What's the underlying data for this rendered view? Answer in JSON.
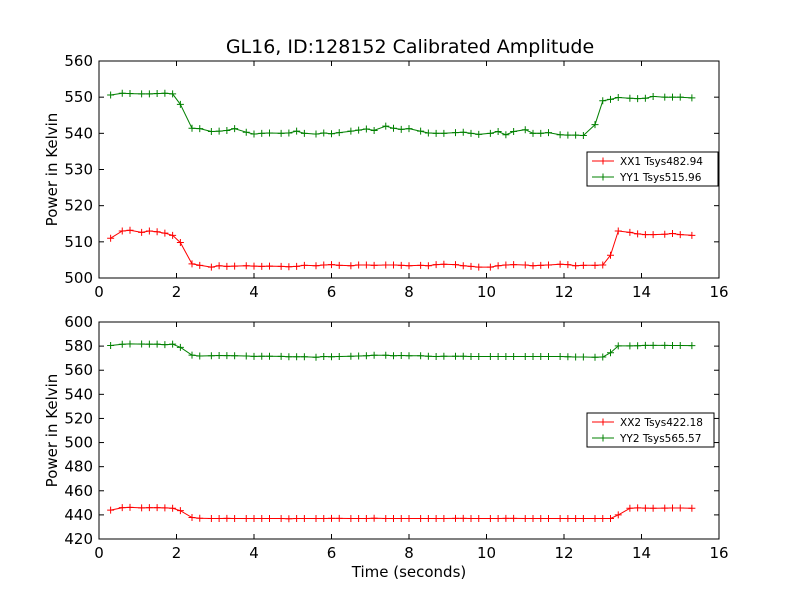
{
  "title": "GL16, ID:128152 Calibrated Amplitude",
  "colors": {
    "xx": "#ff0000",
    "yy": "#008000"
  },
  "chart_data": [
    {
      "type": "line",
      "ylabel": "Power in Kelvin",
      "xlabel": "",
      "xlim": [
        0,
        16
      ],
      "ylim": [
        500,
        560
      ],
      "xticks": [
        0,
        2,
        4,
        6,
        8,
        10,
        12,
        14,
        16
      ],
      "yticks": [
        500,
        510,
        520,
        530,
        540,
        550,
        560
      ],
      "legend": "center-right",
      "series": [
        {
          "name": "XX1 Tsys482.94",
          "color": "#ff0000",
          "x": [
            0.3,
            0.6,
            0.8,
            1.1,
            1.3,
            1.5,
            1.7,
            1.9,
            2.1,
            2.4,
            2.6,
            2.9,
            3.1,
            3.3,
            3.5,
            3.8,
            4.0,
            4.2,
            4.4,
            4.7,
            4.9,
            5.1,
            5.3,
            5.6,
            5.8,
            6.0,
            6.2,
            6.5,
            6.7,
            6.9,
            7.1,
            7.4,
            7.6,
            7.8,
            8.0,
            8.3,
            8.5,
            8.7,
            8.9,
            9.2,
            9.4,
            9.6,
            9.8,
            10.1,
            10.3,
            10.5,
            10.7,
            11.0,
            11.2,
            11.4,
            11.6,
            11.9,
            12.1,
            12.3,
            12.5,
            12.8,
            13.0,
            13.2,
            13.4,
            13.7,
            13.9,
            14.1,
            14.3,
            14.6,
            14.8,
            15.0,
            15.3
          ],
          "y": [
            511,
            513,
            513.2,
            512.6,
            513,
            512.8,
            512.4,
            511.8,
            509.8,
            503.9,
            503.5,
            503,
            503.4,
            503.2,
            503.3,
            503.4,
            503.3,
            503.2,
            503.3,
            503.2,
            503.1,
            503.2,
            503.5,
            503.4,
            503.6,
            503.7,
            503.5,
            503.4,
            503.6,
            503.6,
            503.5,
            503.6,
            503.6,
            503.5,
            503.4,
            503.5,
            503.4,
            503.7,
            503.8,
            503.7,
            503.4,
            503.2,
            503,
            503,
            503.4,
            503.6,
            503.7,
            503.6,
            503.4,
            503.5,
            503.6,
            503.8,
            503.7,
            503.4,
            503.5,
            503.5,
            503.6,
            506.3,
            513,
            512.6,
            512.2,
            512,
            512,
            512.1,
            512.3,
            512,
            511.8
          ]
        },
        {
          "name": "YY1 Tsys515.96",
          "color": "#008000",
          "x": [
            0.3,
            0.6,
            0.8,
            1.1,
            1.3,
            1.5,
            1.7,
            1.9,
            2.1,
            2.4,
            2.6,
            2.9,
            3.1,
            3.3,
            3.5,
            3.8,
            4.0,
            4.2,
            4.4,
            4.7,
            4.9,
            5.1,
            5.3,
            5.6,
            5.8,
            6.0,
            6.2,
            6.5,
            6.7,
            6.9,
            7.1,
            7.4,
            7.6,
            7.8,
            8.0,
            8.3,
            8.5,
            8.7,
            8.9,
            9.2,
            9.4,
            9.6,
            9.8,
            10.1,
            10.3,
            10.5,
            10.7,
            11.0,
            11.2,
            11.4,
            11.6,
            11.9,
            12.1,
            12.3,
            12.5,
            12.8,
            13.0,
            13.2,
            13.4,
            13.7,
            13.9,
            14.1,
            14.3,
            14.6,
            14.8,
            15.0,
            15.3
          ],
          "y": [
            550.6,
            551.1,
            551,
            550.9,
            550.9,
            551,
            551.1,
            550.9,
            548,
            541.4,
            541.3,
            540.5,
            540.6,
            540.8,
            541.3,
            540.3,
            539.8,
            540,
            540.1,
            540,
            540.1,
            540.6,
            540,
            539.8,
            540.1,
            539.9,
            540.2,
            540.6,
            540.9,
            541.2,
            540.8,
            542,
            541.4,
            541.1,
            541.3,
            540.6,
            540.1,
            540,
            540,
            540.2,
            540.3,
            540,
            539.7,
            540,
            540.5,
            539.6,
            540.5,
            541,
            540,
            540,
            540.2,
            539.6,
            539.5,
            539.5,
            539.4,
            542.4,
            549,
            549.4,
            549.9,
            549.7,
            549.6,
            549.7,
            550.2,
            550,
            550,
            550,
            549.8
          ]
        }
      ]
    },
    {
      "type": "line",
      "ylabel": "Power in Kelvin",
      "xlabel": "Time (seconds)",
      "xlim": [
        0,
        16
      ],
      "ylim": [
        420,
        600
      ],
      "xticks": [
        0,
        2,
        4,
        6,
        8,
        10,
        12,
        14,
        16
      ],
      "yticks": [
        420,
        440,
        460,
        480,
        500,
        520,
        540,
        560,
        580,
        600
      ],
      "legend": "center-right",
      "series": [
        {
          "name": "XX2 Tsys422.18",
          "color": "#ff0000",
          "x": [
            0.3,
            0.6,
            0.8,
            1.1,
            1.3,
            1.5,
            1.7,
            1.9,
            2.1,
            2.4,
            2.6,
            2.9,
            3.1,
            3.3,
            3.5,
            3.8,
            4.0,
            4.2,
            4.4,
            4.7,
            4.9,
            5.1,
            5.3,
            5.6,
            5.8,
            6.0,
            6.2,
            6.5,
            6.7,
            6.9,
            7.1,
            7.4,
            7.6,
            7.8,
            8.0,
            8.3,
            8.5,
            8.7,
            8.9,
            9.2,
            9.4,
            9.6,
            9.8,
            10.1,
            10.3,
            10.5,
            10.7,
            11.0,
            11.2,
            11.4,
            11.6,
            11.9,
            12.1,
            12.3,
            12.5,
            12.8,
            13.0,
            13.2,
            13.4,
            13.7,
            13.9,
            14.1,
            14.3,
            14.6,
            14.8,
            15.0,
            15.3
          ],
          "y": [
            444,
            446,
            446.2,
            445.8,
            446,
            446,
            445.8,
            445.5,
            443.5,
            437.8,
            437.2,
            437,
            437,
            437.1,
            437,
            437,
            437,
            437,
            437,
            437,
            436.8,
            437,
            437,
            437,
            437,
            437.1,
            437.1,
            437,
            437,
            437,
            437.2,
            437,
            437,
            437,
            437,
            437,
            437,
            437,
            437,
            437.1,
            437.1,
            437,
            437,
            437,
            437,
            437.1,
            437.1,
            437,
            437,
            437,
            437,
            437,
            437,
            437,
            437,
            437,
            437,
            437,
            440,
            445.5,
            445.8,
            445.6,
            445.5,
            445.6,
            445.7,
            445.7,
            445.5
          ]
        },
        {
          "name": "YY2 Tsys565.57",
          "color": "#008000",
          "x": [
            0.3,
            0.6,
            0.8,
            1.1,
            1.3,
            1.5,
            1.7,
            1.9,
            2.1,
            2.4,
            2.6,
            2.9,
            3.1,
            3.3,
            3.5,
            3.8,
            4.0,
            4.2,
            4.4,
            4.7,
            4.9,
            5.1,
            5.3,
            5.6,
            5.8,
            6.0,
            6.2,
            6.5,
            6.7,
            6.9,
            7.1,
            7.4,
            7.6,
            7.8,
            8.0,
            8.3,
            8.5,
            8.7,
            8.9,
            9.2,
            9.4,
            9.6,
            9.8,
            10.1,
            10.3,
            10.5,
            10.7,
            11.0,
            11.2,
            11.4,
            11.6,
            11.9,
            12.1,
            12.3,
            12.5,
            12.8,
            13.0,
            13.2,
            13.4,
            13.7,
            13.9,
            14.1,
            14.3,
            14.6,
            14.8,
            15.0,
            15.3
          ],
          "y": [
            580.5,
            581.5,
            581.8,
            581.7,
            581.6,
            581.6,
            581.2,
            581.6,
            579,
            572.5,
            571.8,
            572,
            572.2,
            572.1,
            572,
            571.8,
            571.5,
            571.6,
            571.6,
            571.5,
            571.2,
            571.2,
            571.2,
            570.8,
            571.4,
            571.2,
            571.4,
            571.6,
            571.8,
            572.0,
            572.4,
            572.4,
            572.0,
            572.2,
            572.0,
            572.0,
            571.6,
            571.4,
            571.6,
            571.6,
            571.6,
            571.4,
            571.4,
            571.4,
            571.4,
            571.4,
            571.4,
            571.4,
            571.4,
            571.4,
            571.4,
            571.4,
            571.2,
            571.0,
            571.0,
            570.8,
            571.0,
            574.5,
            580.2,
            580.2,
            580.3,
            580.6,
            580.6,
            580.6,
            580.5,
            580.5,
            580.4
          ]
        }
      ]
    }
  ]
}
